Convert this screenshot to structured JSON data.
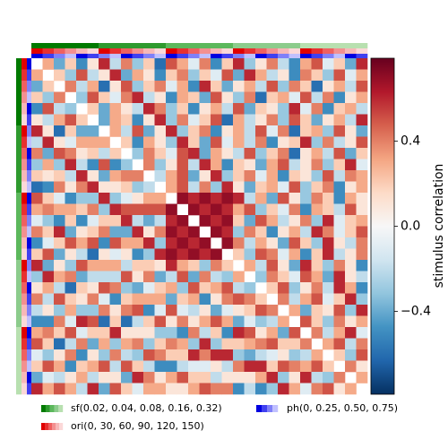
{
  "chart_data": {
    "type": "heatmap",
    "colorbar_label": "stimulus correlation",
    "clim": [
      -0.79,
      0.79
    ],
    "cmap": [
      "#053061",
      "#2166ac",
      "#4393c3",
      "#92c5de",
      "#d1e5f0",
      "#f7f7f7",
      "#fddbc7",
      "#f4a582",
      "#d6604d",
      "#b2182b",
      "#67001f"
    ],
    "cticks": [
      {
        "value": 0.4,
        "label": "0.4"
      },
      {
        "value": 0,
        "label": "0.0"
      },
      {
        "value": -0.4,
        "label": "−0.4"
      }
    ],
    "annotations": [
      {
        "name": "sf(0.02, 0.04, 0.08, 0.16, 0.32)",
        "colors": [
          "#007a00",
          "#2e9a2e",
          "#5cb85c",
          "#8ccc8c",
          "#b8e0b0"
        ],
        "values": [
          0,
          0,
          0,
          0,
          0,
          0,
          1,
          1,
          1,
          1,
          1,
          1,
          2,
          2,
          2,
          2,
          2,
          2,
          3,
          3,
          3,
          3,
          3,
          3,
          4,
          4,
          4,
          4,
          4,
          4
        ]
      },
      {
        "name": "ori(0, 30, 60, 90, 120, 150)",
        "colors": [
          "#e00000",
          "#e83030",
          "#ef6060",
          "#f39090",
          "#f7b8b8",
          "#fbd8d8"
        ],
        "values": [
          0,
          1,
          2,
          3,
          4,
          5,
          0,
          1,
          2,
          3,
          4,
          5,
          0,
          1,
          2,
          3,
          4,
          5,
          0,
          1,
          2,
          3,
          4,
          5,
          0,
          1,
          2,
          3,
          4,
          5
        ]
      },
      {
        "name": "ph(0, 0.25, 0.50, 0.75)",
        "colors": [
          "#0000e0",
          "#4040f0",
          "#8080f8",
          "#c0c0ff"
        ],
        "values": [
          0,
          1,
          2,
          3,
          0,
          1,
          2,
          3,
          0,
          1,
          2,
          3,
          0,
          1,
          2,
          3,
          0,
          1,
          2,
          3,
          0,
          1,
          2,
          3,
          0,
          1,
          2,
          3,
          0,
          1
        ]
      }
    ],
    "values": [
      [
        0.3,
        -0.4,
        0.2,
        -0.5,
        0.1,
        0.6,
        -0.2,
        0.4,
        -0.3,
        0.2,
        -0.6,
        0.5,
        0.3,
        -0.1,
        0.4,
        -0.5,
        0.2,
        0.6,
        -0.3,
        0.1,
        0.4,
        -0.2,
        -0.5,
        0.3,
        0.5,
        -0.1,
        0.2,
        -0.4,
        0.6
      ],
      [
        0.2,
        -0.3,
        0.5,
        -0.2,
        0.1,
        0.6,
        -0.4,
        0.3,
        0.1,
        -0.5,
        0.2,
        0.4,
        -0.3,
        0.2,
        -0.1,
        0.5,
        -0.4,
        0.6,
        0.3,
        -0.2,
        0.1,
        -0.5,
        0.4,
        0.2,
        -0.3,
        0.5,
        -0.1,
        0.3
      ],
      [
        0.4,
        -0.2,
        0.3,
        -0.6,
        0.1,
        0.5,
        -0.3,
        0.2,
        0.4,
        -0.1,
        0.3,
        -0.5,
        0.6,
        0.2,
        -0.4,
        0.1,
        0.3,
        -0.2,
        0.5,
        -0.3,
        0.4,
        0.2,
        -0.6,
        0.1,
        0.3,
        -0.2,
        0.5
      ],
      [
        -0.3,
        0.5,
        0.2,
        -0.1,
        0.4,
        0.6,
        -0.2,
        0.1,
        -0.5,
        0.3,
        0.2,
        -0.4,
        0.5,
        0.1,
        -0.3,
        0.4,
        -0.6,
        0.2,
        0.3,
        -0.1,
        0.5,
        -0.2,
        0.4,
        -0.5,
        0.1,
        0.3
      ],
      [
        0.2,
        -0.4,
        0.3,
        0.1,
        -0.2,
        0.6,
        0.4,
        -0.3,
        0.2,
        -0.5,
        0.1,
        0.3,
        -0.2,
        0.5,
        -0.4,
        0.2,
        0.1,
        -0.3,
        0.6,
        -0.1,
        0.4,
        -0.5,
        0.2,
        0.3,
        -0.2
      ],
      [
        -0.4,
        0.3,
        0.2,
        -0.5,
        0.1,
        0.6,
        -0.3,
        0.4,
        -0.1,
        0.2,
        0.5,
        -0.6,
        0.3,
        -0.2,
        0.1,
        0.4,
        -0.3,
        0.5,
        0.2,
        -0.4,
        0.1,
        0.3,
        -0.2,
        0.6
      ],
      [
        0.3,
        -0.2,
        0.5,
        -0.4,
        0.1,
        0.6,
        -0.3,
        0.2,
        0.4,
        -0.5,
        0.1,
        0.3,
        -0.2,
        0.5,
        -0.1,
        0.4,
        -0.6,
        0.2,
        0.3,
        -0.3,
        0.5,
        0.1,
        -0.4
      ],
      [
        0.2,
        -0.5,
        0.3,
        0.1,
        -0.3,
        0.6,
        0.2,
        -0.4,
        0.5,
        -0.1,
        0.3,
        -0.2,
        0.4,
        -0.5,
        0.1,
        0.2,
        0.6,
        -0.3,
        0.4,
        -0.2,
        0.1,
        0.5
      ],
      [
        -0.3,
        0.4,
        0.2,
        -0.1,
        0.5,
        0.6,
        -0.4,
        0.3,
        0.1,
        -0.2,
        0.5,
        -0.3,
        0.2,
        0.4,
        -0.6,
        0.1,
        0.3,
        -0.2,
        0.5,
        -0.4,
        0.2
      ],
      [
        0.4,
        -0.3,
        0.1,
        0.5,
        -0.2,
        0.6,
        0.3,
        -0.5,
        0.2,
        0.1,
        -0.4,
        0.3,
        0.5,
        -0.2,
        0.1,
        0.4,
        -0.3,
        0.2,
        0.6,
        -0.1
      ],
      [
        -0.2,
        0.3,
        0.5,
        -0.4,
        0.1,
        0.6,
        -0.3,
        0.2,
        0.4,
        -0.1,
        0.3,
        -0.5,
        0.2,
        0.1,
        -0.3,
        0.5,
        -0.2,
        0.4,
        0.3
      ],
      [
        0.3,
        0.5,
        -0.2,
        0.4,
        -0.3,
        0.6,
        0.1,
        -0.4,
        0.2,
        0.3,
        -0.1,
        0.5,
        -0.3,
        0.2,
        0.4,
        -0.5,
        0.1,
        0.3
      ],
      [
        0.7,
        0.6,
        0.7,
        0.6,
        0.7,
        0.6,
        -0.2,
        0.3,
        -0.4,
        0.5,
        0.1,
        -0.3,
        0.4,
        0.2,
        -0.5,
        0.3,
        0.1
      ],
      [
        0.7,
        0.6,
        0.7,
        0.6,
        0.3,
        0.5,
        -0.3,
        0.2,
        -0.1,
        0.4,
        -0.5,
        0.3,
        0.2,
        -0.2,
        0.5,
        0.1
      ],
      [
        0.7,
        0.6,
        0.7,
        0.2,
        -0.4,
        0.5,
        0.3,
        -0.2,
        0.1,
        0.4,
        -0.3,
        0.6,
        -0.1,
        0.2,
        0.3
      ],
      [
        0.7,
        0.6,
        -0.3,
        0.4,
        0.2,
        -0.5,
        0.1,
        0.3,
        -0.2,
        0.6,
        0.4,
        -0.1,
        0.2,
        0.5
      ],
      [
        0.7,
        0.4,
        -0.2,
        0.3,
        0.1,
        -0.4,
        0.5,
        0.2,
        -0.3,
        0.6,
        0.1,
        -0.2,
        0.4
      ],
      [
        0.2,
        -0.3,
        0.5,
        0.4,
        -0.1,
        0.3,
        -0.5,
        0.2,
        0.6,
        -0.2,
        0.1,
        0.4
      ],
      [
        0.3,
        -0.2,
        0.5,
        0.1,
        -0.4,
        0.6,
        0.2,
        -0.3,
        0.4,
        0.1,
        -0.5
      ],
      [
        -0.3,
        0.4,
        0.2,
        -0.1,
        0.5,
        0.3,
        -0.4,
        0.6,
        0.1,
        -0.2
      ],
      [
        0.2,
        0.5,
        -0.3,
        0.1,
        0.4,
        -0.2,
        0.6,
        0.3,
        -0.5
      ],
      [
        0.4,
        -0.2,
        0.3,
        0.5,
        -0.1,
        0.2,
        0.6,
        -0.3
      ],
      [
        0.3,
        -0.4,
        0.2,
        0.1,
        0.5,
        -0.3,
        0.6
      ],
      [
        0.5,
        0.2,
        -0.3,
        0.4,
        0.1,
        0.3
      ],
      [
        0.4,
        -0.2,
        0.3,
        0.6,
        -0.1
      ],
      [
        0.3,
        0.5,
        -0.2,
        0.4
      ],
      [
        0.2,
        -0.3,
        0.5
      ],
      [
        0.4,
        0.1
      ],
      [
        0.3
      ]
    ]
  }
}
